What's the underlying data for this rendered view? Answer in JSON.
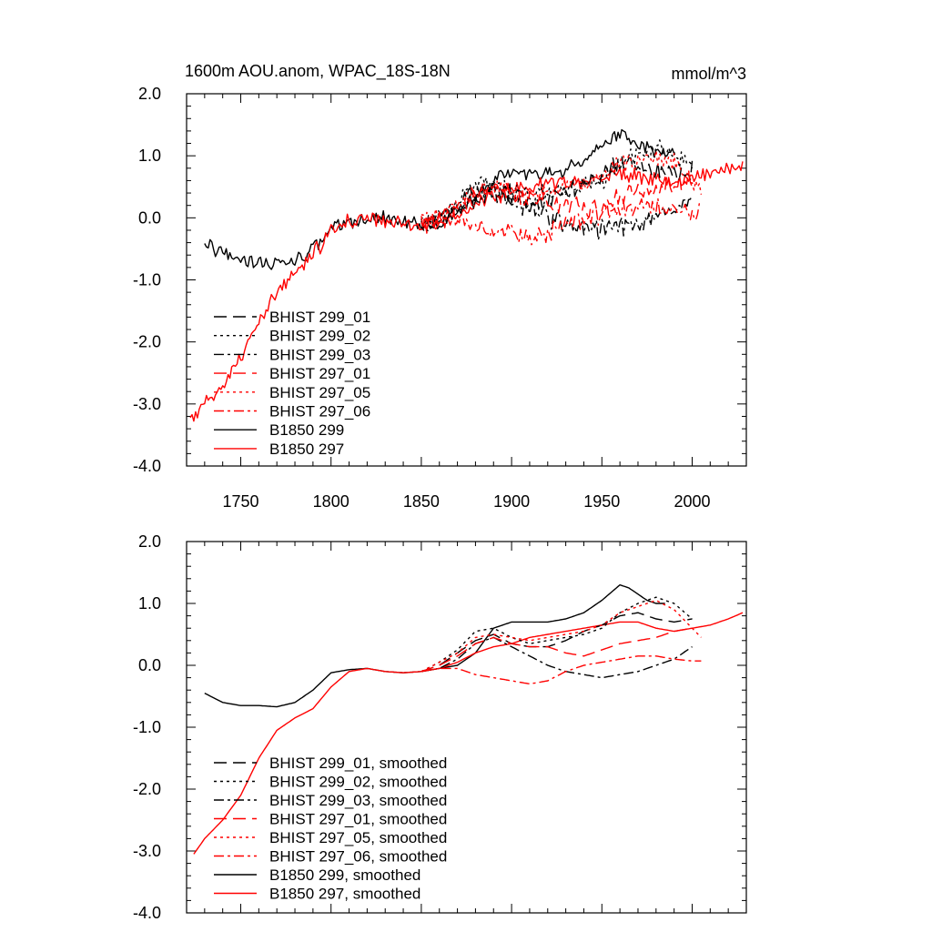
{
  "chart_data": [
    {
      "type": "line",
      "title": "1600m AOU.anom, WPAC_18S-18N",
      "units": "mmol/m^3",
      "xlim": [
        1720,
        2030
      ],
      "ylim": [
        -4.0,
        2.0
      ],
      "xticks": [
        1750,
        1800,
        1850,
        1900,
        1950,
        2000
      ],
      "yticks": [
        2.0,
        1.0,
        0.0,
        -1.0,
        -2.0,
        -3.0,
        -4.0
      ],
      "ytick_labels": [
        "2.0",
        "1.0",
        "0.0",
        "-1.0",
        "-2.0",
        "-3.0",
        "-4.0"
      ],
      "xtick_labels": [
        "1750",
        "1800",
        "1850",
        "1900",
        "1950",
        "2000"
      ],
      "legend": [
        {
          "label": "BHIST 299_01",
          "color": "#000000",
          "dash": "long"
        },
        {
          "label": "BHIST 299_02",
          "color": "#000000",
          "dash": "dot"
        },
        {
          "label": "BHIST 299_03",
          "color": "#000000",
          "dash": "dashdot"
        },
        {
          "label": "BHIST 297_01",
          "color": "#ff0000",
          "dash": "long"
        },
        {
          "label": "BHIST 297_05",
          "color": "#ff0000",
          "dash": "dot"
        },
        {
          "label": "BHIST 297_06",
          "color": "#ff0000",
          "dash": "dashdot"
        },
        {
          "label": "B1850 299",
          "color": "#000000",
          "dash": "solid"
        },
        {
          "label": "B1850 297",
          "color": "#ff0000",
          "dash": "solid"
        }
      ],
      "series": [
        {
          "name": "B1850 299",
          "color": "#000000",
          "dash": "solid",
          "noise": 0.09,
          "x": [
            1730,
            1740,
            1750,
            1760,
            1770,
            1780,
            1790,
            1800,
            1810,
            1820,
            1830,
            1840,
            1850,
            1860,
            1870,
            1880,
            1890,
            1900,
            1910,
            1920,
            1930,
            1940,
            1950,
            1960,
            1970,
            1980,
            1990
          ],
          "y": [
            -0.4,
            -0.6,
            -0.65,
            -0.7,
            -0.75,
            -0.7,
            -0.5,
            -0.2,
            -0.05,
            -0.05,
            0.0,
            -0.1,
            -0.1,
            -0.1,
            0.1,
            0.35,
            0.6,
            0.75,
            0.75,
            0.7,
            0.8,
            0.95,
            1.15,
            1.35,
            1.2,
            1.1,
            1.0
          ]
        },
        {
          "name": "B1850 297",
          "color": "#ff0000",
          "dash": "solid",
          "noise": 0.09,
          "x": [
            1722,
            1730,
            1740,
            1750,
            1760,
            1770,
            1780,
            1790,
            1800,
            1810,
            1820,
            1830,
            1840,
            1850,
            1860,
            1870,
            1880,
            1890,
            1900,
            1910,
            1920,
            1930,
            1940,
            1950,
            1960,
            1970,
            1980,
            1990,
            2000,
            2010,
            2020,
            2028
          ],
          "y": [
            -3.3,
            -3.0,
            -2.7,
            -2.3,
            -1.7,
            -1.2,
            -0.9,
            -0.6,
            -0.2,
            -0.05,
            0.0,
            -0.05,
            -0.1,
            -0.1,
            -0.05,
            0.05,
            0.2,
            0.35,
            0.45,
            0.5,
            0.55,
            0.55,
            0.6,
            0.65,
            0.7,
            0.7,
            0.6,
            0.6,
            0.65,
            0.7,
            0.8,
            0.85
          ]
        },
        {
          "name": "BHIST 299_01",
          "color": "#000000",
          "dash": "long",
          "noise": 0.12,
          "x": [
            1850,
            1860,
            1870,
            1880,
            1890,
            1900,
            1910,
            1920,
            1930,
            1940,
            1950,
            1960,
            1970,
            1980,
            1990,
            2000
          ],
          "y": [
            -0.1,
            0.0,
            0.2,
            0.4,
            0.5,
            0.4,
            0.3,
            0.3,
            0.4,
            0.55,
            0.7,
            0.85,
            0.85,
            0.75,
            0.7,
            0.75
          ]
        },
        {
          "name": "BHIST 299_02",
          "color": "#000000",
          "dash": "dot",
          "noise": 0.12,
          "x": [
            1850,
            1860,
            1870,
            1880,
            1890,
            1900,
            1910,
            1920,
            1930,
            1940,
            1950,
            1960,
            1970,
            1980,
            1990,
            2000
          ],
          "y": [
            -0.1,
            0.05,
            0.25,
            0.5,
            0.55,
            0.45,
            0.35,
            0.4,
            0.45,
            0.5,
            0.6,
            0.85,
            1.0,
            1.1,
            1.0,
            0.8
          ]
        },
        {
          "name": "BHIST 299_03",
          "color": "#000000",
          "dash": "dashdot",
          "noise": 0.12,
          "x": [
            1850,
            1860,
            1870,
            1880,
            1890,
            1900,
            1910,
            1920,
            1930,
            1940,
            1950,
            1960,
            1970,
            1980,
            1990,
            2000
          ],
          "y": [
            -0.1,
            -0.05,
            0.1,
            0.3,
            0.4,
            0.3,
            0.15,
            0.0,
            -0.1,
            -0.15,
            -0.2,
            -0.15,
            -0.1,
            0.0,
            0.1,
            0.3
          ]
        },
        {
          "name": "BHIST 297_01",
          "color": "#ff0000",
          "dash": "long",
          "noise": 0.12,
          "x": [
            1850,
            1860,
            1870,
            1880,
            1890,
            1900,
            1910,
            1920,
            1930,
            1940,
            1950,
            1960,
            1970,
            1980,
            1990,
            2000
          ],
          "y": [
            -0.1,
            0.0,
            0.15,
            0.35,
            0.45,
            0.35,
            0.3,
            0.3,
            0.2,
            0.15,
            0.25,
            0.35,
            0.4,
            0.45,
            0.55,
            0.6
          ]
        },
        {
          "name": "BHIST 297_05",
          "color": "#ff0000",
          "dash": "dot",
          "noise": 0.12,
          "x": [
            1850,
            1860,
            1870,
            1880,
            1890,
            1900,
            1910,
            1920,
            1930,
            1940,
            1950,
            1960,
            1970,
            1980,
            1990,
            2000,
            2005
          ],
          "y": [
            -0.1,
            0.05,
            0.2,
            0.4,
            0.5,
            0.45,
            0.4,
            0.45,
            0.5,
            0.55,
            0.65,
            0.85,
            0.95,
            1.0,
            0.9,
            0.6,
            0.45
          ]
        },
        {
          "name": "BHIST 297_06",
          "color": "#ff0000",
          "dash": "dashdot",
          "noise": 0.12,
          "x": [
            1850,
            1860,
            1870,
            1880,
            1890,
            1900,
            1910,
            1920,
            1930,
            1940,
            1950,
            1960,
            1970,
            1980,
            1990,
            2000,
            2005
          ],
          "y": [
            -0.1,
            -0.05,
            -0.05,
            -0.15,
            -0.2,
            -0.25,
            -0.3,
            -0.25,
            -0.1,
            0.0,
            0.05,
            0.1,
            0.15,
            0.15,
            0.1,
            0.08,
            0.08
          ]
        }
      ]
    },
    {
      "type": "line",
      "title": "",
      "units": "",
      "xlim": [
        1720,
        2030
      ],
      "ylim": [
        -4.0,
        2.0
      ],
      "xticks": [
        1750,
        1800,
        1850,
        1900,
        1950,
        2000
      ],
      "yticks": [
        2.0,
        1.0,
        0.0,
        -1.0,
        -2.0,
        -3.0,
        -4.0
      ],
      "ytick_labels": [
        "2.0",
        "1.0",
        "0.0",
        "-1.0",
        "-2.0",
        "-3.0",
        "-4.0"
      ],
      "legend": [
        {
          "label": "BHIST 299_01, smoothed",
          "color": "#000000",
          "dash": "long"
        },
        {
          "label": "BHIST 299_02, smoothed",
          "color": "#000000",
          "dash": "dot"
        },
        {
          "label": "BHIST 299_03, smoothed",
          "color": "#000000",
          "dash": "dashdot"
        },
        {
          "label": "BHIST 297_01, smoothed",
          "color": "#ff0000",
          "dash": "long"
        },
        {
          "label": "BHIST 297_05, smoothed",
          "color": "#ff0000",
          "dash": "dot"
        },
        {
          "label": "BHIST 297_06, smoothed",
          "color": "#ff0000",
          "dash": "dashdot"
        },
        {
          "label": "B1850 299, smoothed",
          "color": "#000000",
          "dash": "solid"
        },
        {
          "label": "B1850 297, smoothed",
          "color": "#ff0000",
          "dash": "solid"
        }
      ],
      "series": [
        {
          "name": "B1850 299, smoothed",
          "color": "#000000",
          "dash": "solid",
          "noise": 0,
          "x": [
            1730,
            1740,
            1750,
            1760,
            1770,
            1780,
            1790,
            1800,
            1810,
            1820,
            1830,
            1840,
            1850,
            1860,
            1870,
            1880,
            1890,
            1900,
            1910,
            1920,
            1930,
            1940,
            1950,
            1960,
            1965,
            1970,
            1975,
            1980,
            1985
          ],
          "y": [
            -0.45,
            -0.6,
            -0.65,
            -0.65,
            -0.67,
            -0.6,
            -0.4,
            -0.12,
            -0.07,
            -0.05,
            -0.1,
            -0.12,
            -0.1,
            -0.05,
            0.0,
            0.2,
            0.6,
            0.7,
            0.7,
            0.7,
            0.75,
            0.85,
            1.05,
            1.3,
            1.25,
            1.15,
            1.05,
            1.0,
            1.0
          ]
        },
        {
          "name": "B1850 297, smoothed",
          "color": "#ff0000",
          "dash": "solid",
          "noise": 0,
          "x": [
            1724,
            1730,
            1740,
            1750,
            1760,
            1770,
            1780,
            1790,
            1800,
            1810,
            1820,
            1830,
            1840,
            1850,
            1860,
            1870,
            1880,
            1890,
            1900,
            1910,
            1920,
            1930,
            1940,
            1950,
            1960,
            1970,
            1980,
            1990,
            2000,
            2010,
            2020,
            2028
          ],
          "y": [
            -3.05,
            -2.8,
            -2.5,
            -2.1,
            -1.5,
            -1.05,
            -0.85,
            -0.7,
            -0.35,
            -0.1,
            -0.05,
            -0.1,
            -0.12,
            -0.1,
            -0.05,
            0.05,
            0.2,
            0.3,
            0.35,
            0.45,
            0.5,
            0.55,
            0.6,
            0.65,
            0.7,
            0.7,
            0.6,
            0.55,
            0.6,
            0.65,
            0.75,
            0.85
          ]
        },
        {
          "name": "BHIST 299_01, smoothed",
          "color": "#000000",
          "dash": "long",
          "noise": 0,
          "x": [
            1850,
            1860,
            1870,
            1880,
            1890,
            1900,
            1910,
            1920,
            1930,
            1940,
            1950,
            1960,
            1970,
            1980,
            1990,
            2000
          ],
          "y": [
            -0.1,
            0.0,
            0.2,
            0.4,
            0.5,
            0.35,
            0.3,
            0.3,
            0.4,
            0.55,
            0.65,
            0.8,
            0.85,
            0.75,
            0.7,
            0.75
          ]
        },
        {
          "name": "BHIST 299_02, smoothed",
          "color": "#000000",
          "dash": "dot",
          "noise": 0,
          "x": [
            1850,
            1860,
            1870,
            1880,
            1890,
            1900,
            1910,
            1920,
            1930,
            1940,
            1950,
            1960,
            1970,
            1980,
            1990,
            2000
          ],
          "y": [
            -0.1,
            0.05,
            0.25,
            0.55,
            0.6,
            0.45,
            0.35,
            0.4,
            0.45,
            0.5,
            0.6,
            0.85,
            1.0,
            1.1,
            1.0,
            0.75
          ]
        },
        {
          "name": "BHIST 299_03, smoothed",
          "color": "#000000",
          "dash": "dashdot",
          "noise": 0,
          "x": [
            1850,
            1860,
            1870,
            1880,
            1890,
            1900,
            1910,
            1920,
            1930,
            1940,
            1950,
            1960,
            1970,
            1980,
            1990,
            2000
          ],
          "y": [
            -0.1,
            -0.05,
            0.1,
            0.35,
            0.45,
            0.3,
            0.15,
            0.0,
            -0.1,
            -0.15,
            -0.2,
            -0.15,
            -0.1,
            0.0,
            0.1,
            0.3
          ]
        },
        {
          "name": "BHIST 297_01, smoothed",
          "color": "#ff0000",
          "dash": "long",
          "noise": 0,
          "x": [
            1850,
            1860,
            1870,
            1880,
            1890,
            1900,
            1910,
            1920,
            1930,
            1940,
            1950,
            1960,
            1970,
            1980,
            1990,
            2000
          ],
          "y": [
            -0.1,
            0.0,
            0.15,
            0.35,
            0.45,
            0.35,
            0.3,
            0.3,
            0.2,
            0.15,
            0.25,
            0.35,
            0.4,
            0.45,
            0.55,
            0.6
          ]
        },
        {
          "name": "BHIST 297_05, smoothed",
          "color": "#ff0000",
          "dash": "dot",
          "noise": 0,
          "x": [
            1850,
            1860,
            1870,
            1880,
            1890,
            1900,
            1910,
            1920,
            1930,
            1940,
            1950,
            1960,
            1970,
            1980,
            1990,
            2000,
            2005
          ],
          "y": [
            -0.1,
            0.05,
            0.2,
            0.45,
            0.5,
            0.45,
            0.4,
            0.45,
            0.5,
            0.55,
            0.65,
            0.85,
            0.95,
            1.05,
            0.9,
            0.6,
            0.45
          ]
        },
        {
          "name": "BHIST 297_06, smoothed",
          "color": "#ff0000",
          "dash": "dashdot",
          "noise": 0,
          "x": [
            1850,
            1860,
            1870,
            1880,
            1890,
            1900,
            1910,
            1920,
            1930,
            1940,
            1950,
            1960,
            1970,
            1980,
            1990,
            2000,
            2005
          ],
          "y": [
            -0.1,
            -0.05,
            -0.05,
            -0.15,
            -0.2,
            -0.25,
            -0.3,
            -0.25,
            -0.1,
            0.0,
            0.05,
            0.1,
            0.15,
            0.15,
            0.1,
            0.07,
            0.07
          ]
        }
      ]
    }
  ]
}
